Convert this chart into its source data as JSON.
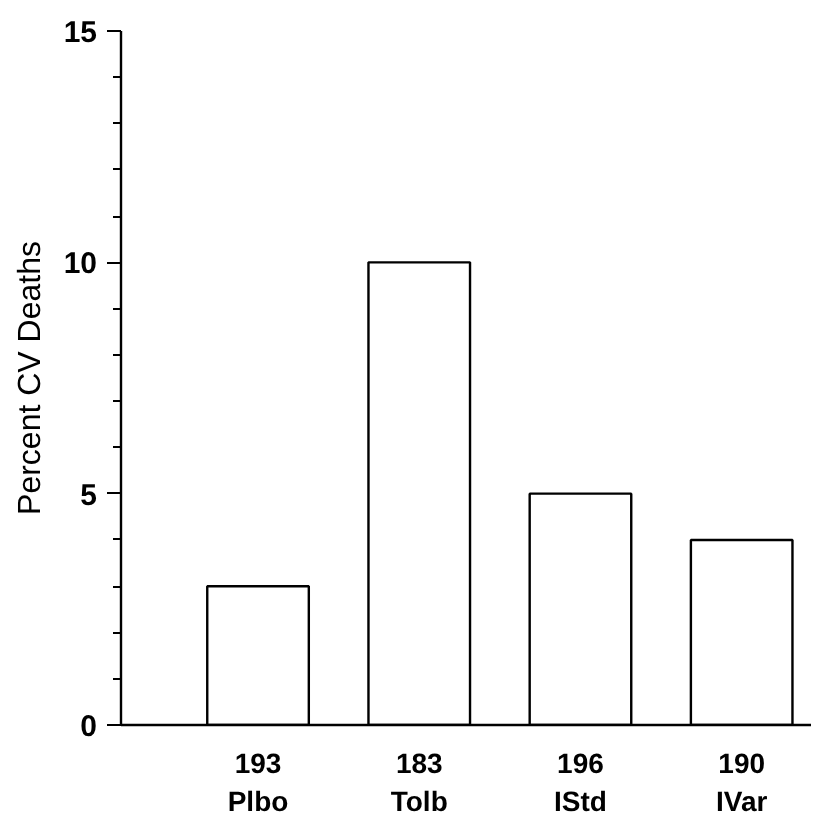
{
  "chart_data": {
    "type": "bar",
    "ylabel": "Percent CV Deaths",
    "categories": [
      "193\nPlbo",
      "183\nTolb",
      "196\nIStd",
      "190\nIVar"
    ],
    "values": [
      3,
      10,
      5,
      4
    ],
    "color": "#ffffff",
    "ylim": [
      0,
      15
    ],
    "yticks": [
      0,
      5,
      10,
      15
    ],
    "grid": false
  }
}
